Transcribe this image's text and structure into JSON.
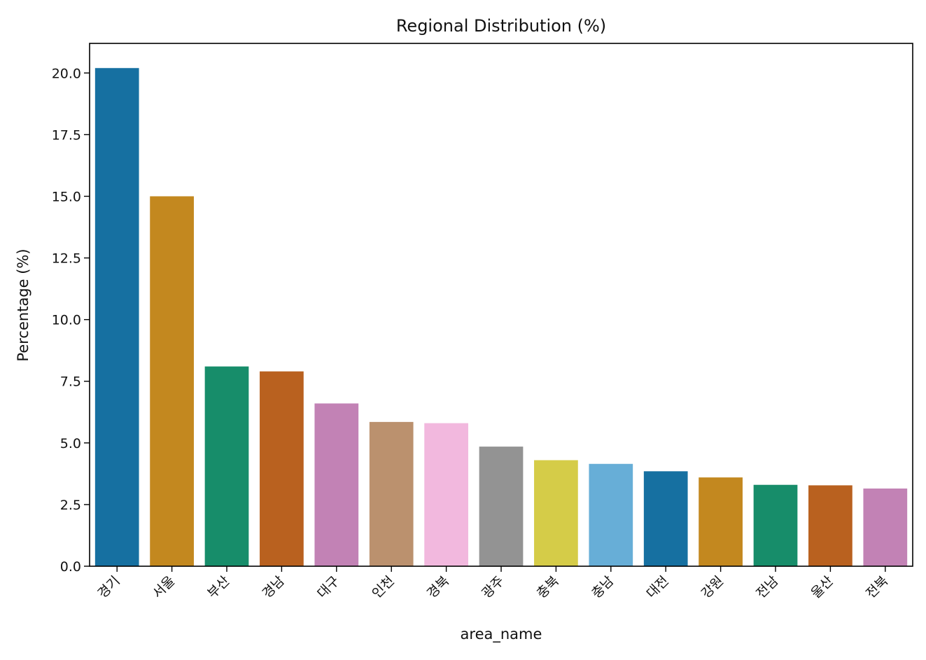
{
  "chart_data": {
    "type": "bar",
    "title": "Regional Distribution (%)",
    "xlabel": "area_name",
    "ylabel": "Percentage (%)",
    "categories": [
      "경기",
      "서울",
      "부산",
      "경남",
      "대구",
      "인천",
      "경북",
      "광주",
      "충북",
      "충남",
      "대전",
      "강원",
      "전남",
      "울산",
      "전북"
    ],
    "values": [
      20.2,
      15.0,
      8.1,
      7.9,
      6.6,
      5.85,
      5.8,
      4.85,
      4.3,
      4.15,
      3.85,
      3.6,
      3.3,
      3.28,
      3.15
    ],
    "colors": [
      "#1670a1",
      "#c3881f",
      "#178d6a",
      "#b9611f",
      "#c282b5",
      "#bb916e",
      "#f2b8de",
      "#939393",
      "#d5cc48",
      "#67aed7",
      "#1670a1",
      "#c3881f",
      "#178d6a",
      "#b9611f",
      "#c282b5"
    ],
    "ylim": [
      0,
      21.2
    ],
    "yticks": [
      0.0,
      2.5,
      5.0,
      7.5,
      10.0,
      12.5,
      15.0,
      17.5,
      20.0
    ],
    "ytick_labels": [
      "0.0",
      "2.5",
      "5.0",
      "7.5",
      "10.0",
      "12.5",
      "15.0",
      "17.5",
      "20.0"
    ],
    "grid": false,
    "legend": "none"
  }
}
